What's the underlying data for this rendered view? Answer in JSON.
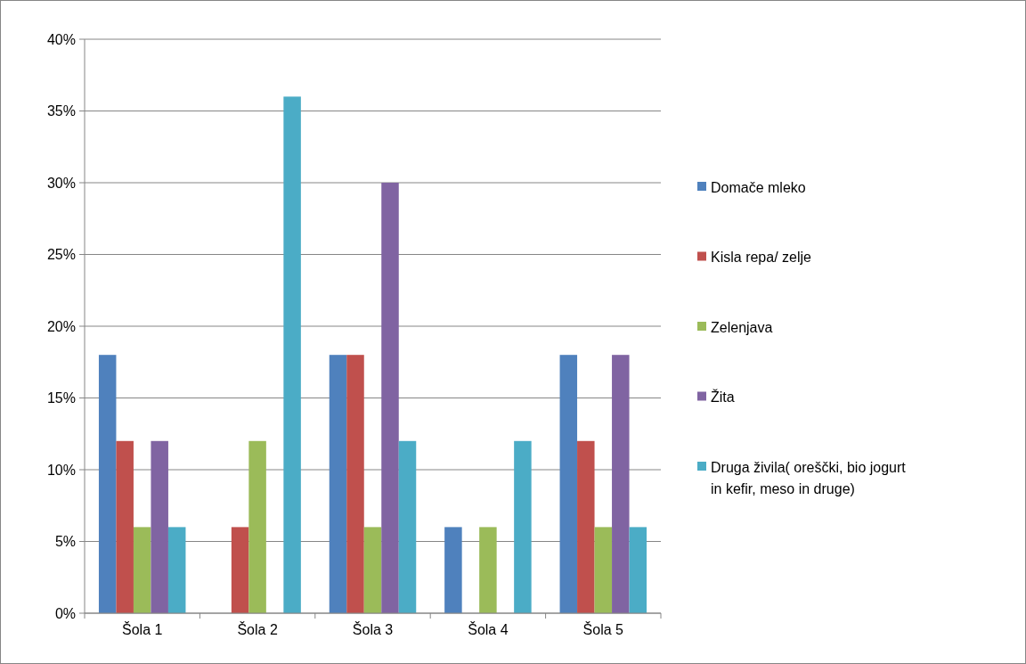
{
  "chart_data": {
    "type": "bar",
    "categories": [
      "Šola 1",
      "Šola 2",
      "Šola 3",
      "Šola 4",
      "Šola 5"
    ],
    "series": [
      {
        "name": "Domače mleko",
        "color": "#4f81bd",
        "values": [
          18,
          0,
          18,
          6,
          18
        ]
      },
      {
        "name": "Kisla repa/ zelje",
        "color": "#c0504d",
        "values": [
          12,
          6,
          18,
          0,
          12
        ]
      },
      {
        "name": "Zelenjava",
        "color": "#9bbb59",
        "values": [
          6,
          12,
          6,
          6,
          6
        ]
      },
      {
        "name": "Žita",
        "color": "#8064a2",
        "values": [
          12,
          0,
          30,
          0,
          18
        ]
      },
      {
        "name": "Druga živila( oreščki, bio jogurt in kefir, meso in druge)",
        "color": "#4bacc6",
        "values": [
          6,
          36,
          12,
          12,
          6
        ]
      }
    ],
    "ylim": [
      0,
      40
    ],
    "yticks": [
      {
        "value": 0,
        "label": "0%"
      },
      {
        "value": 5,
        "label": "5%"
      },
      {
        "value": 10,
        "label": "10%"
      },
      {
        "value": 15,
        "label": "15%"
      },
      {
        "value": 20,
        "label": "20%"
      },
      {
        "value": 25,
        "label": "25%"
      },
      {
        "value": 30,
        "label": "30%"
      },
      {
        "value": 35,
        "label": "35%"
      },
      {
        "value": 40,
        "label": "40%"
      }
    ],
    "grid": "y",
    "legend": "right"
  }
}
